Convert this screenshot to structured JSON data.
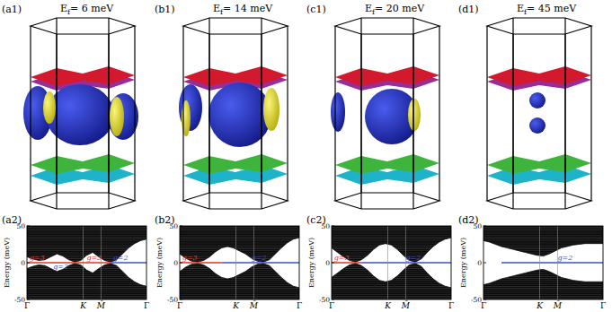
{
  "figure": {
    "fermi_surfaces": [
      {
        "label": "(a1)",
        "title": "Ef= 6 meV"
      },
      {
        "label": "(b1)",
        "title": "Ef= 14 meV"
      },
      {
        "label": "(c1)",
        "title": "Ef= 20 meV"
      },
      {
        "label": "(d1)",
        "title": "Ef= 45 meV"
      }
    ]
  },
  "chart_data": [
    {
      "type": "area",
      "label": "(a2)",
      "y_label": "Energy (meV)",
      "x": [
        0,
        0.05,
        0.1,
        0.15,
        0.2,
        0.25,
        0.3,
        0.35,
        0.4,
        0.45,
        0.5,
        0.55,
        0.6,
        0.65,
        0.7,
        0.75,
        0.8,
        0.85,
        0.9,
        0.95,
        1
      ],
      "xlim": [
        0,
        1
      ],
      "xticks": [
        {
          "value": 0,
          "label": "Γ"
        },
        {
          "value": 0.47,
          "label": "K"
        },
        {
          "value": 0.62,
          "label": "M̄"
        },
        {
          "value": 1,
          "label": "Γ"
        }
      ],
      "ylim": [
        -50,
        50
      ],
      "yticks": [
        -50,
        0,
        50
      ],
      "series": [
        {
          "type": "area",
          "color": "#0a0a0a",
          "values": [
            8,
            5,
            3,
            4,
            8,
            12,
            9,
            4,
            1,
            3,
            10,
            14,
            8,
            3,
            1,
            4,
            12,
            20,
            26,
            30,
            32
          ]
        },
        {
          "type": "area",
          "color": "#0a0a0a",
          "values": [
            -8,
            -5,
            -3,
            -4,
            -8,
            -12,
            -9,
            -4,
            -1,
            -3,
            -10,
            -14,
            -8,
            -3,
            -1,
            -4,
            -12,
            -20,
            -26,
            -30,
            -32
          ]
        },
        {
          "type": "line",
          "color": "#e8321e",
          "x": [
            0,
            0.7
          ],
          "values": [
            0,
            0
          ]
        },
        {
          "type": "line",
          "color": "#3c4fd0",
          "x": [
            0.7,
            1
          ],
          "values": [
            0,
            0
          ]
        }
      ],
      "annotations": [
        {
          "text": "g=3",
          "x": 0.02,
          "y": 4,
          "color": "#e8321e"
        },
        {
          "text": "g=2",
          "x": 0.22,
          "y": -9,
          "color": "#3c4fd0"
        },
        {
          "text": "g=3",
          "x": 0.5,
          "y": 4,
          "color": "#e8321e"
        },
        {
          "text": "g=2",
          "x": 0.72,
          "y": 4,
          "color": "#3c4fd0"
        }
      ]
    },
    {
      "type": "area",
      "label": "(b2)",
      "y_label": "Energy (meV)",
      "x": [
        0,
        0.05,
        0.1,
        0.15,
        0.2,
        0.25,
        0.3,
        0.35,
        0.4,
        0.45,
        0.5,
        0.55,
        0.6,
        0.65,
        0.7,
        0.75,
        0.8,
        0.85,
        0.9,
        0.95,
        1
      ],
      "xlim": [
        0,
        1
      ],
      "xticks": [
        {
          "value": 0,
          "label": "Γ"
        },
        {
          "value": 0.47,
          "label": "K"
        },
        {
          "value": 0.62,
          "label": "M̄"
        },
        {
          "value": 1,
          "label": "Γ"
        }
      ],
      "ylim": [
        -50,
        50
      ],
      "yticks": [
        -50,
        0,
        50
      ],
      "series": [
        {
          "type": "area",
          "color": "#0a0a0a",
          "values": [
            12,
            6,
            2,
            1,
            3,
            8,
            15,
            20,
            22,
            20,
            16,
            12,
            6,
            2,
            1,
            4,
            12,
            20,
            27,
            32,
            34
          ]
        },
        {
          "type": "area",
          "color": "#0a0a0a",
          "values": [
            -12,
            -6,
            -2,
            -1,
            -3,
            -8,
            -15,
            -20,
            -22,
            -20,
            -16,
            -12,
            -6,
            -2,
            -1,
            -4,
            -12,
            -20,
            -27,
            -32,
            -34
          ]
        },
        {
          "type": "line",
          "color": "#e8321e",
          "x": [
            0,
            0.35
          ],
          "values": [
            0,
            0
          ]
        },
        {
          "type": "line",
          "color": "#3c4fd0",
          "x": [
            0.35,
            1
          ],
          "values": [
            0,
            0
          ]
        }
      ],
      "annotations": [
        {
          "text": "g=3",
          "x": 0.02,
          "y": 4,
          "color": "#e8321e"
        },
        {
          "text": "g=2",
          "x": 0.6,
          "y": 4,
          "color": "#3c4fd0"
        }
      ]
    },
    {
      "type": "area",
      "label": "(c2)",
      "y_label": "Energy (meV)",
      "x": [
        0,
        0.05,
        0.1,
        0.15,
        0.2,
        0.25,
        0.3,
        0.35,
        0.4,
        0.45,
        0.5,
        0.55,
        0.6,
        0.65,
        0.7,
        0.75,
        0.8,
        0.85,
        0.9,
        0.95,
        1
      ],
      "xlim": [
        0,
        1
      ],
      "xticks": [
        {
          "value": 0,
          "label": "Γ"
        },
        {
          "value": 0.47,
          "label": "K"
        },
        {
          "value": 0.62,
          "label": "M̄"
        },
        {
          "value": 1,
          "label": "Γ"
        }
      ],
      "ylim": [
        -50,
        50
      ],
      "yticks": [
        -50,
        0,
        50
      ],
      "series": [
        {
          "type": "area",
          "color": "#0a0a0a",
          "values": [
            20,
            14,
            8,
            3,
            1,
            4,
            10,
            18,
            24,
            26,
            24,
            18,
            10,
            3,
            1,
            5,
            14,
            22,
            28,
            32,
            34
          ]
        },
        {
          "type": "area",
          "color": "#0a0a0a",
          "values": [
            -20,
            -14,
            -8,
            -3,
            -1,
            -4,
            -10,
            -18,
            -24,
            -26,
            -24,
            -18,
            -10,
            -3,
            -1,
            -5,
            -14,
            -22,
            -28,
            -32,
            -34
          ]
        },
        {
          "type": "line",
          "color": "#e8321e",
          "x": [
            0,
            0.25
          ],
          "values": [
            0,
            0
          ]
        },
        {
          "type": "line",
          "color": "#3c4fd0",
          "x": [
            0.25,
            1
          ],
          "values": [
            0,
            0
          ]
        }
      ],
      "annotations": [
        {
          "text": "g=3",
          "x": 0.02,
          "y": 4,
          "color": "#e8321e"
        },
        {
          "text": "g=2",
          "x": 0.62,
          "y": 4,
          "color": "#3c4fd0"
        }
      ]
    },
    {
      "type": "area",
      "label": "(d2)",
      "y_label": "Energy (meV)",
      "x": [
        0,
        0.05,
        0.1,
        0.15,
        0.2,
        0.25,
        0.3,
        0.35,
        0.4,
        0.45,
        0.5,
        0.55,
        0.6,
        0.65,
        0.7,
        0.75,
        0.8,
        0.85,
        0.9,
        0.95,
        1
      ],
      "xlim": [
        0,
        1
      ],
      "xticks": [
        {
          "value": 0,
          "label": "Γ"
        },
        {
          "value": 0.47,
          "label": "K"
        },
        {
          "value": 0.62,
          "label": "M̄"
        },
        {
          "value": 1,
          "label": "Γ"
        }
      ],
      "ylim": [
        -50,
        50
      ],
      "yticks": [
        -50,
        0,
        50
      ],
      "series": [
        {
          "type": "area",
          "color": "#0a0a0a",
          "values": [
            30,
            28,
            25,
            22,
            20,
            18,
            16,
            14,
            12,
            10,
            9,
            12,
            16,
            20,
            22,
            24,
            25,
            26,
            26,
            26,
            26
          ]
        },
        {
          "type": "area",
          "color": "#0a0a0a",
          "values": [
            -30,
            -28,
            -25,
            -22,
            -20,
            -18,
            -16,
            -14,
            -12,
            -10,
            -9,
            -12,
            -16,
            -20,
            -22,
            -24,
            -25,
            -26,
            -26,
            -26,
            -26
          ]
        },
        {
          "type": "line",
          "color": "#3c4fd0",
          "x": [
            0.15,
            1
          ],
          "values": [
            0,
            0
          ]
        }
      ],
      "annotations": [
        {
          "text": "g=2",
          "x": 0.62,
          "y": 4,
          "color": "#3c4fd0"
        }
      ]
    }
  ]
}
